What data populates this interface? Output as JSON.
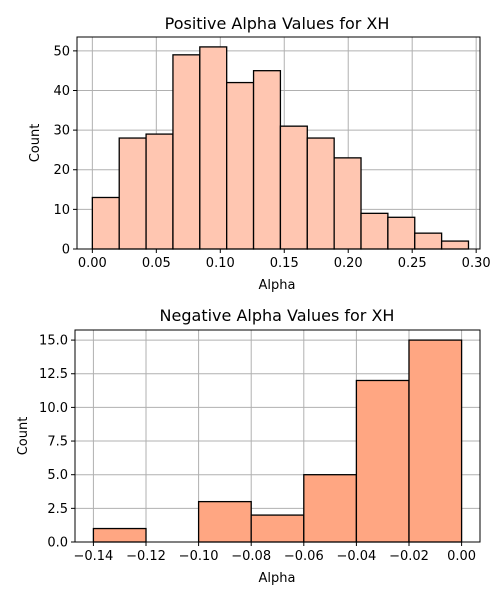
{
  "chart_data": [
    {
      "type": "bar",
      "title": "Positive Alpha Values for XH",
      "xlabel": "Alpha",
      "ylabel": "Count",
      "xlim": [
        -0.012,
        0.303
      ],
      "ylim": [
        0,
        53.5
      ],
      "grid": true,
      "color": "#ffc6b1",
      "edge_color": "#000000",
      "bin_edges": [
        0.0,
        0.021,
        0.042,
        0.063,
        0.084,
        0.105,
        0.126,
        0.147,
        0.168,
        0.189,
        0.21,
        0.231,
        0.252,
        0.273,
        0.294
      ],
      "values": [
        13,
        28,
        29,
        49,
        51,
        42,
        45,
        31,
        28,
        23,
        9,
        8,
        4,
        2
      ],
      "x_ticks": [
        0.0,
        0.05,
        0.1,
        0.15,
        0.2,
        0.25,
        0.3
      ],
      "x_tick_labels": [
        "0.00",
        "0.05",
        "0.10",
        "0.15",
        "0.20",
        "0.25",
        "0.30"
      ],
      "y_ticks": [
        0,
        10,
        20,
        30,
        40,
        50
      ],
      "y_tick_labels": [
        "0",
        "10",
        "20",
        "30",
        "40",
        "50"
      ]
    },
    {
      "type": "bar",
      "title": "Negative Alpha Values for XH",
      "xlabel": "Alpha",
      "ylabel": "Count",
      "xlim": [
        -0.147,
        0.007
      ],
      "ylim": [
        0,
        15.75
      ],
      "grid": true,
      "color": "#ffa682",
      "edge_color": "#000000",
      "bin_edges": [
        -0.14,
        -0.12,
        -0.1,
        -0.08,
        -0.06,
        -0.04,
        -0.02,
        0.0
      ],
      "values": [
        1,
        0,
        3,
        2,
        5,
        12,
        15
      ],
      "x_ticks": [
        -0.14,
        -0.12,
        -0.1,
        -0.08,
        -0.06,
        -0.04,
        -0.02,
        0.0
      ],
      "x_tick_labels": [
        "−0.14",
        "−0.12",
        "−0.10",
        "−0.08",
        "−0.06",
        "−0.04",
        "−0.02",
        "0.00"
      ],
      "y_ticks": [
        0,
        2.5,
        5,
        7.5,
        10,
        12.5,
        15
      ],
      "y_tick_labels": [
        "0.0",
        "2.5",
        "5.0",
        "7.5",
        "10.0",
        "12.5",
        "15.0"
      ]
    }
  ]
}
